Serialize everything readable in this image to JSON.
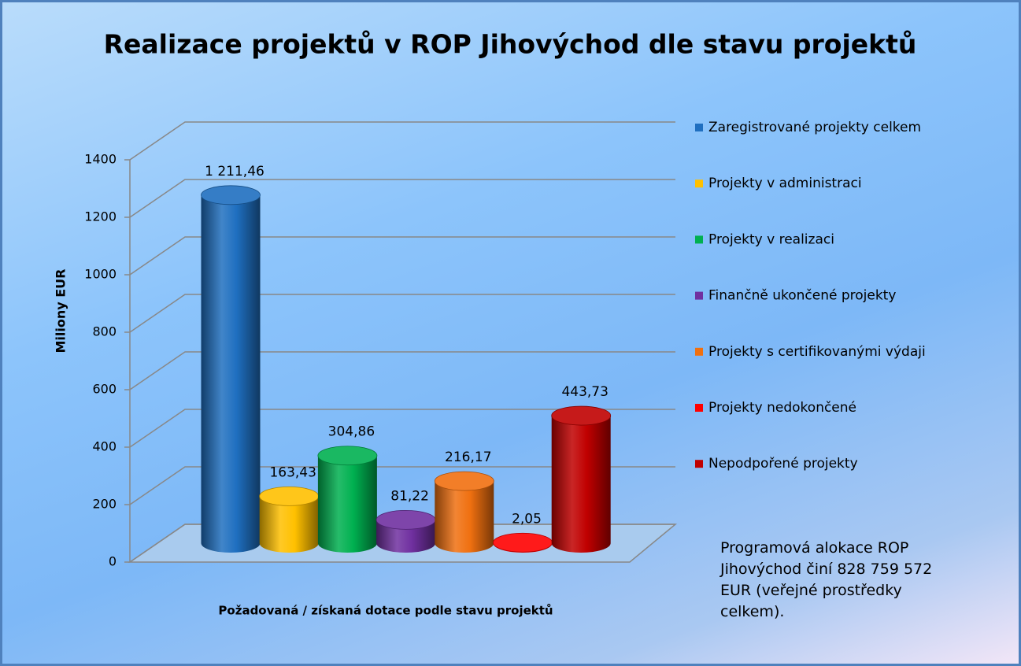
{
  "chart_data": {
    "type": "bar",
    "title": "Realizace projektů v ROP Jihovýchod dle stavu projektů",
    "ylabel": "Miliony EUR",
    "xlabel": "Požadovaná  / získaná  dotace podle stavu projektů",
    "ylim": [
      0,
      1400
    ],
    "yticks": [
      0,
      200,
      400,
      600,
      800,
      1000,
      1200,
      1400
    ],
    "grid": true,
    "legend": "right",
    "series": [
      {
        "name": "Zaregistrované projekty celkem",
        "color": "#1f6fc0",
        "values": [
          1211.46
        ],
        "value_labels": [
          "1 211,46"
        ]
      },
      {
        "name": "Projekty v administraci",
        "color": "#ffc000",
        "values": [
          163.43
        ],
        "value_labels": [
          "163,43"
        ]
      },
      {
        "name": "Projekty v realizaci",
        "color": "#00b050",
        "values": [
          304.86
        ],
        "value_labels": [
          "304,86"
        ]
      },
      {
        "name": "Finančně ukončené projekty",
        "color": "#7030a0",
        "values": [
          81.22
        ],
        "value_labels": [
          "81,22"
        ]
      },
      {
        "name": "Projekty s certifikovanými výdaji",
        "color": "#f07010",
        "values": [
          216.17
        ],
        "value_labels": [
          "216,17"
        ]
      },
      {
        "name": "Projekty nedokončené",
        "color": "#ff0000",
        "values": [
          2.05
        ],
        "value_labels": [
          "2,05"
        ]
      },
      {
        "name": "Nepodpořené projekty",
        "color": "#c00000",
        "values": [
          443.73
        ],
        "value_labels": [
          "443,73"
        ]
      }
    ],
    "annotation": "Programová alokace ROP Jihovýchod činí 828 759 572 EUR (veřejné prostředky celkem)."
  }
}
